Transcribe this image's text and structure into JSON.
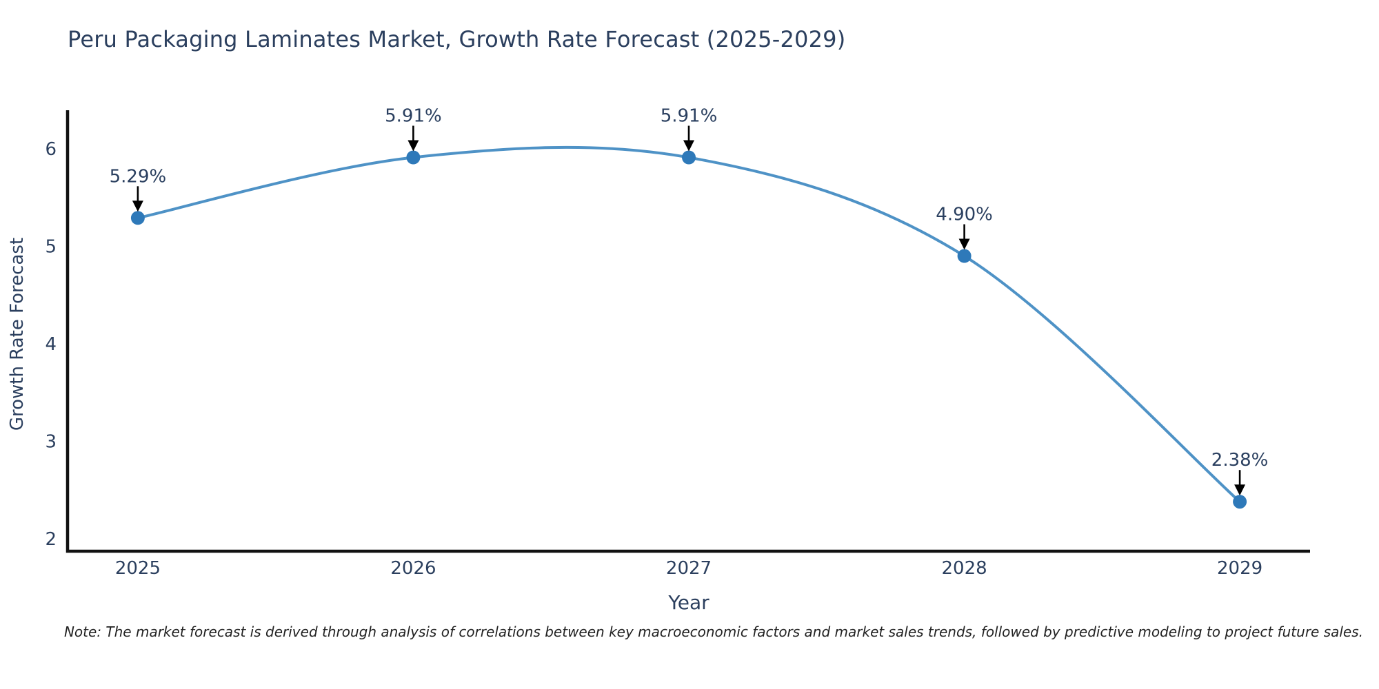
{
  "title": "Peru Packaging Laminates Market, Growth Rate Forecast (2025-2029)",
  "note": "Note: The market forecast is derived through analysis of correlations between key macroeconomic factors and market sales trends, followed by predictive modeling to project future sales.",
  "chart_data": {
    "type": "line",
    "title": "Peru Packaging Laminates Market, Growth Rate Forecast (2025-2029)",
    "xlabel": "Year",
    "ylabel": "Growth Rate Forecast",
    "x": [
      2025,
      2026,
      2027,
      2028,
      2029
    ],
    "series": [
      {
        "name": "Growth Rate Forecast",
        "values": [
          5.29,
          5.91,
          5.91,
          4.9,
          2.38
        ],
        "point_labels": [
          "5.29%",
          "5.91%",
          "5.91%",
          "4.90%",
          "2.38%"
        ]
      }
    ],
    "line_shape": "spline",
    "markers": true,
    "grid": false,
    "legend": "none",
    "xticks": [
      2025,
      2026,
      2027,
      2028,
      2029
    ],
    "yticks": [
      2,
      3,
      4,
      5,
      6
    ],
    "xlim": [
      2024.745,
      2029.255
    ],
    "ylim": [
      1.873,
      6.394
    ],
    "colors": {
      "line": "#4e92c6",
      "marker": "#2e79b9",
      "axis": "#111111",
      "tick_text": "#2b3f5e",
      "annotation_text": "#2a3f5f",
      "annotation_arrow": "#000000",
      "background": "#ffffff"
    }
  }
}
